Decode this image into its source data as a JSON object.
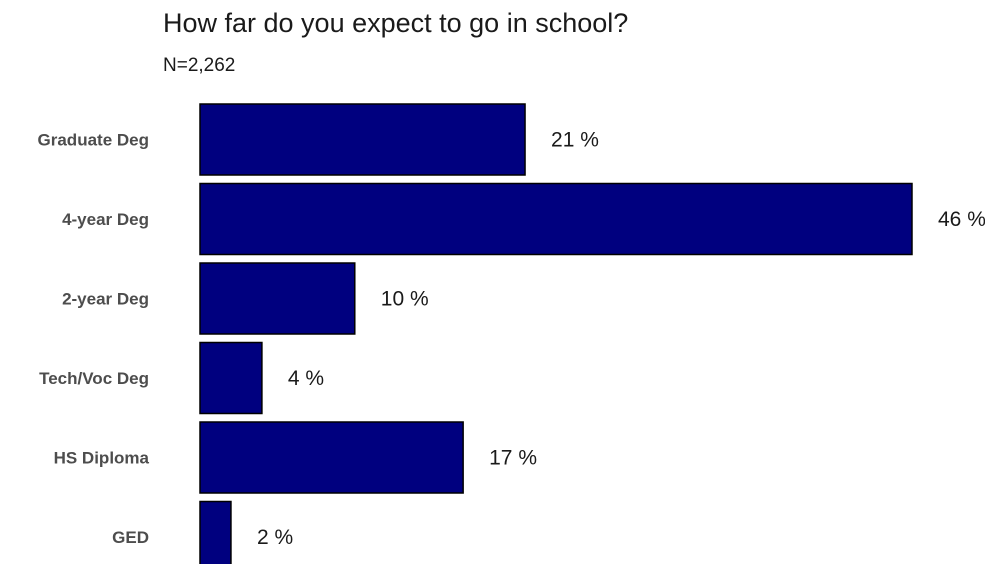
{
  "chart_data": {
    "type": "bar",
    "orientation": "horizontal",
    "title": "How far do you expect to go in school?",
    "subtitle": "N=2,262",
    "categories": [
      "Graduate Deg",
      "4-year Deg",
      "2-year Deg",
      "Tech/Voc Deg",
      "HS Diploma",
      "GED"
    ],
    "values": [
      21,
      46,
      10,
      4,
      17,
      2
    ],
    "value_labels": [
      "21 %",
      "46 %",
      "10 %",
      "4 %",
      "17 %",
      "2 %"
    ],
    "xlim": [
      0,
      46
    ],
    "grid": false,
    "legend": "none",
    "bar_color": "#00007f",
    "bar_edge_color": "#000000"
  }
}
